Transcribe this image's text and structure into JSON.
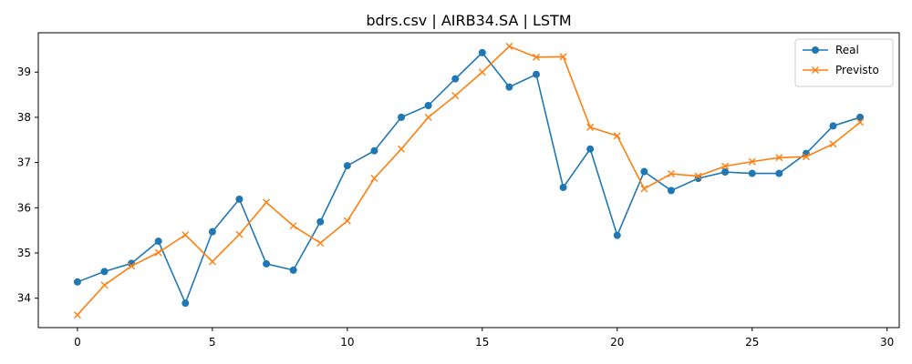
{
  "chart_data": {
    "type": "line",
    "title": "bdrs.csv | AIRB34.SA | LSTM",
    "xlabel": "",
    "ylabel": "",
    "xlim": [
      -1.45,
      30.45
    ],
    "ylim": [
      33.35,
      39.87
    ],
    "x_ticks": [
      0,
      5,
      10,
      15,
      20,
      25,
      30
    ],
    "y_ticks": [
      34,
      35,
      36,
      37,
      38,
      39
    ],
    "grid": false,
    "legend_position": "top-right",
    "x": [
      0,
      1,
      2,
      3,
      4,
      5,
      6,
      7,
      8,
      9,
      10,
      11,
      12,
      13,
      14,
      15,
      16,
      17,
      18,
      19,
      20,
      21,
      22,
      23,
      24,
      25,
      26,
      27,
      28,
      29
    ],
    "series": [
      {
        "name": "Real",
        "color": "#1f77b4",
        "marker": "circle",
        "values": [
          34.36,
          34.59,
          34.77,
          35.26,
          33.89,
          35.47,
          36.19,
          34.76,
          34.62,
          35.69,
          36.93,
          37.26,
          38.0,
          38.26,
          38.85,
          39.43,
          38.67,
          38.95,
          36.45,
          37.3,
          35.39,
          36.8,
          36.38,
          36.65,
          36.79,
          36.76,
          36.76,
          37.2,
          37.81,
          38.0
        ]
      },
      {
        "name": "Previsto",
        "color": "#ff7f0e",
        "marker": "x",
        "values": [
          33.63,
          34.29,
          34.71,
          35.01,
          35.4,
          34.81,
          35.41,
          36.12,
          35.6,
          35.22,
          35.71,
          36.65,
          37.3,
          38.0,
          38.48,
          39.0,
          39.57,
          39.33,
          39.34,
          37.78,
          37.59,
          36.42,
          36.75,
          36.7,
          36.92,
          37.02,
          37.11,
          37.13,
          37.41,
          37.89
        ]
      }
    ]
  }
}
